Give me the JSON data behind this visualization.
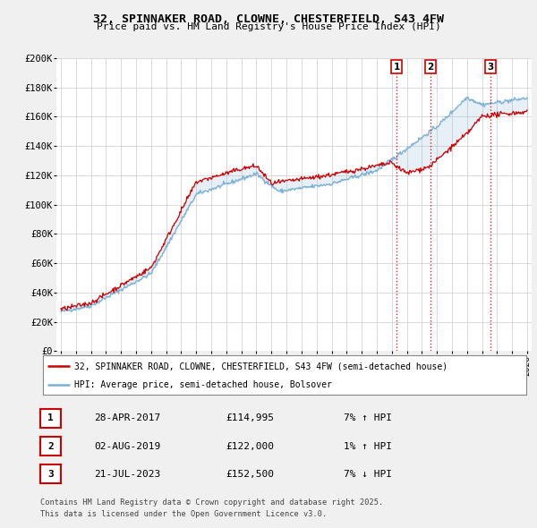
{
  "title": "32, SPINNAKER ROAD, CLOWNE, CHESTERFIELD, S43 4FW",
  "subtitle": "Price paid vs. HM Land Registry's House Price Index (HPI)",
  "red_label": "32, SPINNAKER ROAD, CLOWNE, CHESTERFIELD, S43 4FW (semi-detached house)",
  "blue_label": "HPI: Average price, semi-detached house, Bolsover",
  "footer1": "Contains HM Land Registry data © Crown copyright and database right 2025.",
  "footer2": "This data is licensed under the Open Government Licence v3.0.",
  "transactions": [
    {
      "num": "1",
      "date": "28-APR-2017",
      "price": "£114,995",
      "hpi": "7% ↑ HPI",
      "x": 2017.32
    },
    {
      "num": "2",
      "date": "02-AUG-2019",
      "price": "£122,000",
      "hpi": "1% ↑ HPI",
      "x": 2019.58
    },
    {
      "num": "3",
      "date": "21-JUL-2023",
      "price": "£152,500",
      "hpi": "7% ↓ HPI",
      "x": 2023.55
    }
  ],
  "ylim": [
    0,
    200000
  ],
  "xlim": [
    1994.7,
    2026.3
  ],
  "yticks": [
    0,
    20000,
    40000,
    60000,
    80000,
    100000,
    120000,
    140000,
    160000,
    180000,
    200000
  ],
  "ytick_labels": [
    "£0",
    "£20K",
    "£40K",
    "£60K",
    "£80K",
    "£100K",
    "£120K",
    "£140K",
    "£160K",
    "£180K",
    "£200K"
  ],
  "xtick_years": [
    1995,
    1996,
    1997,
    1998,
    1999,
    2000,
    2001,
    2002,
    2003,
    2004,
    2005,
    2006,
    2007,
    2008,
    2009,
    2010,
    2011,
    2012,
    2013,
    2014,
    2015,
    2016,
    2017,
    2018,
    2019,
    2020,
    2021,
    2022,
    2023,
    2024,
    2025,
    2026
  ],
  "background_color": "#f0f0f0",
  "plot_bg": "#ffffff",
  "red_color": "#cc0000",
  "blue_color": "#7bafd4",
  "grid_color": "#cccccc"
}
